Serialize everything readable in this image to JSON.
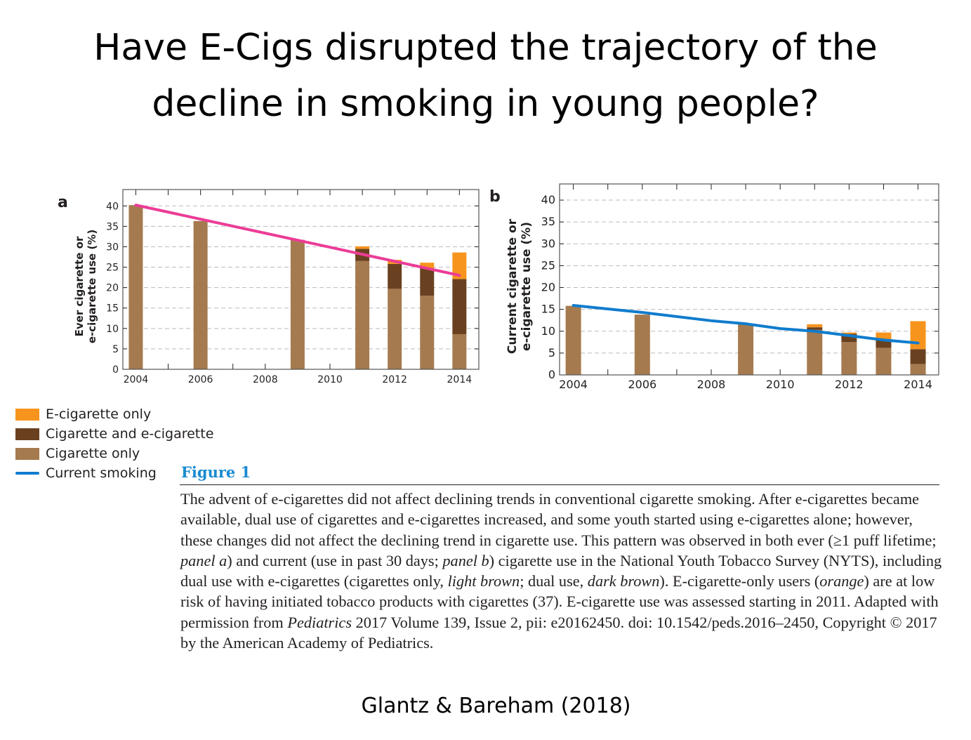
{
  "title_line1": "Have E-Cigs disrupted the trajectory of the",
  "title_line2": "decline in smoking in young people?",
  "colors": {
    "e_only": "#f7941d",
    "dual": "#6a4120",
    "cig_only": "#a67a4f",
    "trend_a": "#ec3c96",
    "trend_b": "#0f7ccd"
  },
  "legend": [
    {
      "label": "E-cigarette only",
      "kind": "e_only"
    },
    {
      "label": "Cigarette and e-cigarette",
      "kind": "dual"
    },
    {
      "label": "Cigarette only",
      "kind": "cig_only"
    },
    {
      "label": "Current smoking",
      "kind": "line"
    }
  ],
  "chart_data": [
    {
      "type": "bar",
      "stacked": true,
      "panel_label": "a",
      "ylabel_line1": "Ever cigarette or",
      "ylabel_line2": "e-cigarette use (%)",
      "ylim": [
        0,
        44
      ],
      "yticks": [
        0,
        5,
        10,
        15,
        20,
        25,
        30,
        35,
        40
      ],
      "xlim": [
        2003.6,
        2014.6
      ],
      "xticks": [
        2004,
        2006,
        2008,
        2010,
        2012,
        2014
      ],
      "years": [
        2004,
        2006,
        2009,
        2011,
        2012,
        2013,
        2014
      ],
      "series": [
        {
          "name": "Cigarette only",
          "key": "cig_only",
          "values": [
            40.2,
            36.3,
            31.7,
            26.5,
            19.7,
            18.0,
            8.6
          ]
        },
        {
          "name": "Cigarette and e-cigarette",
          "key": "dual",
          "values": [
            0,
            0,
            0,
            3.0,
            6.1,
            6.8,
            13.5
          ]
        },
        {
          "name": "E-cigarette only",
          "key": "e_only",
          "values": [
            0,
            0,
            0,
            0.6,
            1.0,
            1.3,
            6.5
          ]
        }
      ],
      "trend": {
        "x": [
          2004,
          2014
        ],
        "y": [
          40.2,
          23.0
        ],
        "color_key": "trend_a"
      }
    },
    {
      "type": "bar",
      "stacked": true,
      "panel_label": "b",
      "ylabel_line1": "Current cigarette or",
      "ylabel_line2": "e-cigarette use (%)",
      "ylim": [
        0,
        43.7
      ],
      "yticks": [
        0,
        5,
        10,
        15,
        20,
        25,
        30,
        35,
        40
      ],
      "xlim": [
        2003.6,
        2014.6
      ],
      "xticks": [
        2004,
        2006,
        2008,
        2010,
        2012,
        2014
      ],
      "years": [
        2004,
        2006,
        2009,
        2011,
        2012,
        2013,
        2014
      ],
      "series": [
        {
          "name": "Cigarette only",
          "key": "cig_only",
          "values": [
            15.8,
            13.8,
            11.6,
            10.3,
            7.5,
            6.2,
            2.5
          ]
        },
        {
          "name": "Cigarette and e-cigarette",
          "key": "dual",
          "values": [
            0,
            0,
            0,
            0.6,
            1.9,
            1.9,
            3.4
          ]
        },
        {
          "name": "E-cigarette only",
          "key": "e_only",
          "values": [
            0,
            0,
            0,
            0.7,
            0.3,
            1.6,
            6.4
          ]
        }
      ],
      "trend": {
        "x": [
          2004,
          2006,
          2008,
          2009,
          2010,
          2011,
          2012,
          2013,
          2014
        ],
        "y": [
          15.9,
          14.3,
          12.4,
          11.7,
          10.6,
          10.0,
          9.0,
          8.0,
          7.3
        ],
        "color_key": "trend_b"
      }
    }
  ],
  "figure_label": "Figure 1",
  "caption_parts": [
    {
      "t": "The advent of e-cigarettes did not affect declining trends in conventional cigarette smoking. After e-cigarettes became available, dual use of cigarettes and e-cigarettes increased, and some youth started using e-cigarettes alone; however, these changes did not affect the declining trend in cigarette use. This pattern was observed in both ever (≥1 puff lifetime; "
    },
    {
      "t": "panel a",
      "i": true
    },
    {
      "t": ") and current (use in past 30 days; "
    },
    {
      "t": "panel b",
      "i": true
    },
    {
      "t": ") cigarette use in the National Youth Tobacco Survey (NYTS), including dual use with e-cigarettes (cigarettes only, "
    },
    {
      "t": "light brown",
      "i": true
    },
    {
      "t": "; dual use, "
    },
    {
      "t": "dark brown",
      "i": true
    },
    {
      "t": "). E-cigarette-only users ("
    },
    {
      "t": "orange",
      "i": true
    },
    {
      "t": ") are at low risk of having initiated tobacco products with cigarettes (37). E-cigarette use was assessed starting in 2011. Adapted with permission from "
    },
    {
      "t": "Pediatrics",
      "i": true
    },
    {
      "t": " 2017 Volume 139, Issue 2, pii: e20162450. doi: 10.1542/peds.2016–2450, Copyright © 2017 by the American Academy of Pediatrics."
    }
  ],
  "source": "Glantz & Bareham (2018)"
}
